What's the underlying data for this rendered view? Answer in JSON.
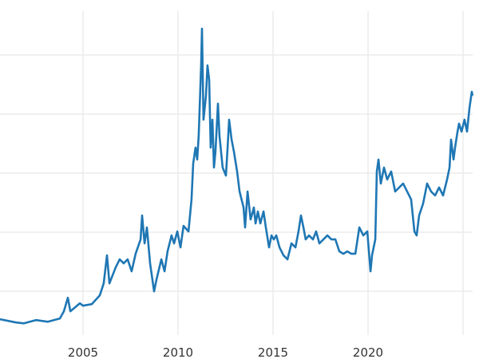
{
  "chart_data": {
    "type": "line",
    "title": "",
    "xlabel": "",
    "ylabel": "",
    "xlim": [
      2000.63,
      2025.84
    ],
    "ylim": [
      2.6,
      59.3
    ],
    "x_ticks": [
      2005,
      2010,
      2015,
      2020,
      2025
    ],
    "x_tick_labels": [
      "2005",
      "2010",
      "2015",
      "2020",
      ""
    ],
    "y_gridlines": [
      10,
      20,
      30,
      40,
      50
    ],
    "grid": true,
    "line_color": "#1f77b4",
    "grid_color": "#ebebeb",
    "series": [
      {
        "x": [
          2000.63,
          2001.47,
          2001.89,
          2002.52,
          2003.15,
          2003.78,
          2003.99,
          2004.2,
          2004.33,
          2004.83,
          2005.0,
          2005.46,
          2005.88,
          2006.09,
          2006.26,
          2006.39,
          2006.72,
          2006.93,
          2007.14,
          2007.35,
          2007.56,
          2007.77,
          2008.03,
          2008.11,
          2008.24,
          2008.36,
          2008.53,
          2008.74,
          2008.87,
          2009.12,
          2009.29,
          2009.45,
          2009.66,
          2009.79,
          2009.96,
          2010.13,
          2010.29,
          2010.55,
          2010.71,
          2010.8,
          2010.92,
          2011.01,
          2011.09,
          2011.22,
          2011.26,
          2011.34,
          2011.47,
          2011.55,
          2011.64,
          2011.72,
          2011.81,
          2011.89,
          2011.97,
          2012.1,
          2012.18,
          2012.35,
          2012.52,
          2012.61,
          2012.69,
          2012.82,
          2012.94,
          2013.11,
          2013.24,
          2013.45,
          2013.53,
          2013.66,
          2013.82,
          2013.99,
          2014.08,
          2014.2,
          2014.33,
          2014.5,
          2014.62,
          2014.79,
          2014.92,
          2015.04,
          2015.17,
          2015.34,
          2015.55,
          2015.76,
          2015.97,
          2016.18,
          2016.34,
          2016.47,
          2016.6,
          2016.72,
          2016.89,
          2017.1,
          2017.27,
          2017.44,
          2017.65,
          2017.86,
          2018.07,
          2018.28,
          2018.49,
          2018.7,
          2018.91,
          2019.12,
          2019.33,
          2019.54,
          2019.75,
          2019.96,
          2020.13,
          2020.21,
          2020.38,
          2020.46,
          2020.55,
          2020.67,
          2020.84,
          2021.01,
          2021.22,
          2021.43,
          2021.64,
          2021.85,
          2022.06,
          2022.27,
          2022.44,
          2022.56,
          2022.69,
          2022.9,
          2023.11,
          2023.32,
          2023.53,
          2023.74,
          2023.95,
          2024.16,
          2024.29,
          2024.37,
          2024.5,
          2024.58,
          2024.71,
          2024.79,
          2024.92,
          2025.08,
          2025.21,
          2025.34,
          2025.46,
          2025.5
        ],
        "y": [
          5.27,
          4.73,
          4.59,
          5.14,
          4.86,
          5.41,
          6.62,
          8.92,
          6.62,
          7.97,
          7.57,
          7.84,
          9.32,
          11.35,
          16.08,
          11.35,
          14.05,
          15.41,
          14.73,
          15.41,
          13.38,
          16.35,
          18.78,
          22.84,
          18.11,
          20.81,
          14.73,
          10.0,
          12.03,
          15.41,
          13.38,
          16.76,
          19.46,
          18.11,
          20.14,
          17.43,
          21.08,
          20.14,
          25.54,
          31.62,
          34.32,
          32.3,
          36.35,
          48.51,
          54.46,
          39.05,
          43.11,
          48.24,
          45.81,
          34.32,
          39.05,
          30.95,
          33.65,
          41.76,
          36.35,
          30.95,
          29.59,
          34.32,
          39.05,
          35.68,
          33.65,
          30.27,
          26.89,
          24.19,
          20.81,
          26.89,
          22.16,
          24.19,
          21.49,
          23.51,
          21.49,
          23.51,
          20.81,
          17.43,
          19.46,
          18.78,
          19.46,
          17.43,
          16.08,
          15.41,
          18.11,
          17.43,
          20.14,
          22.84,
          20.81,
          18.78,
          19.46,
          18.78,
          20.14,
          18.11,
          18.78,
          19.46,
          18.78,
          18.78,
          16.76,
          16.35,
          16.76,
          16.35,
          16.35,
          20.81,
          19.46,
          20.14,
          13.38,
          16.08,
          18.78,
          30.27,
          32.3,
          28.24,
          30.95,
          28.92,
          30.27,
          26.89,
          27.57,
          28.24,
          26.89,
          25.54,
          20.14,
          19.46,
          22.84,
          24.86,
          28.24,
          26.89,
          26.22,
          27.57,
          26.22,
          28.92,
          30.95,
          35.68,
          32.3,
          34.32,
          37.03,
          38.38,
          37.03,
          39.05,
          37.03,
          41.08,
          43.78,
          43.11
        ]
      }
    ]
  }
}
